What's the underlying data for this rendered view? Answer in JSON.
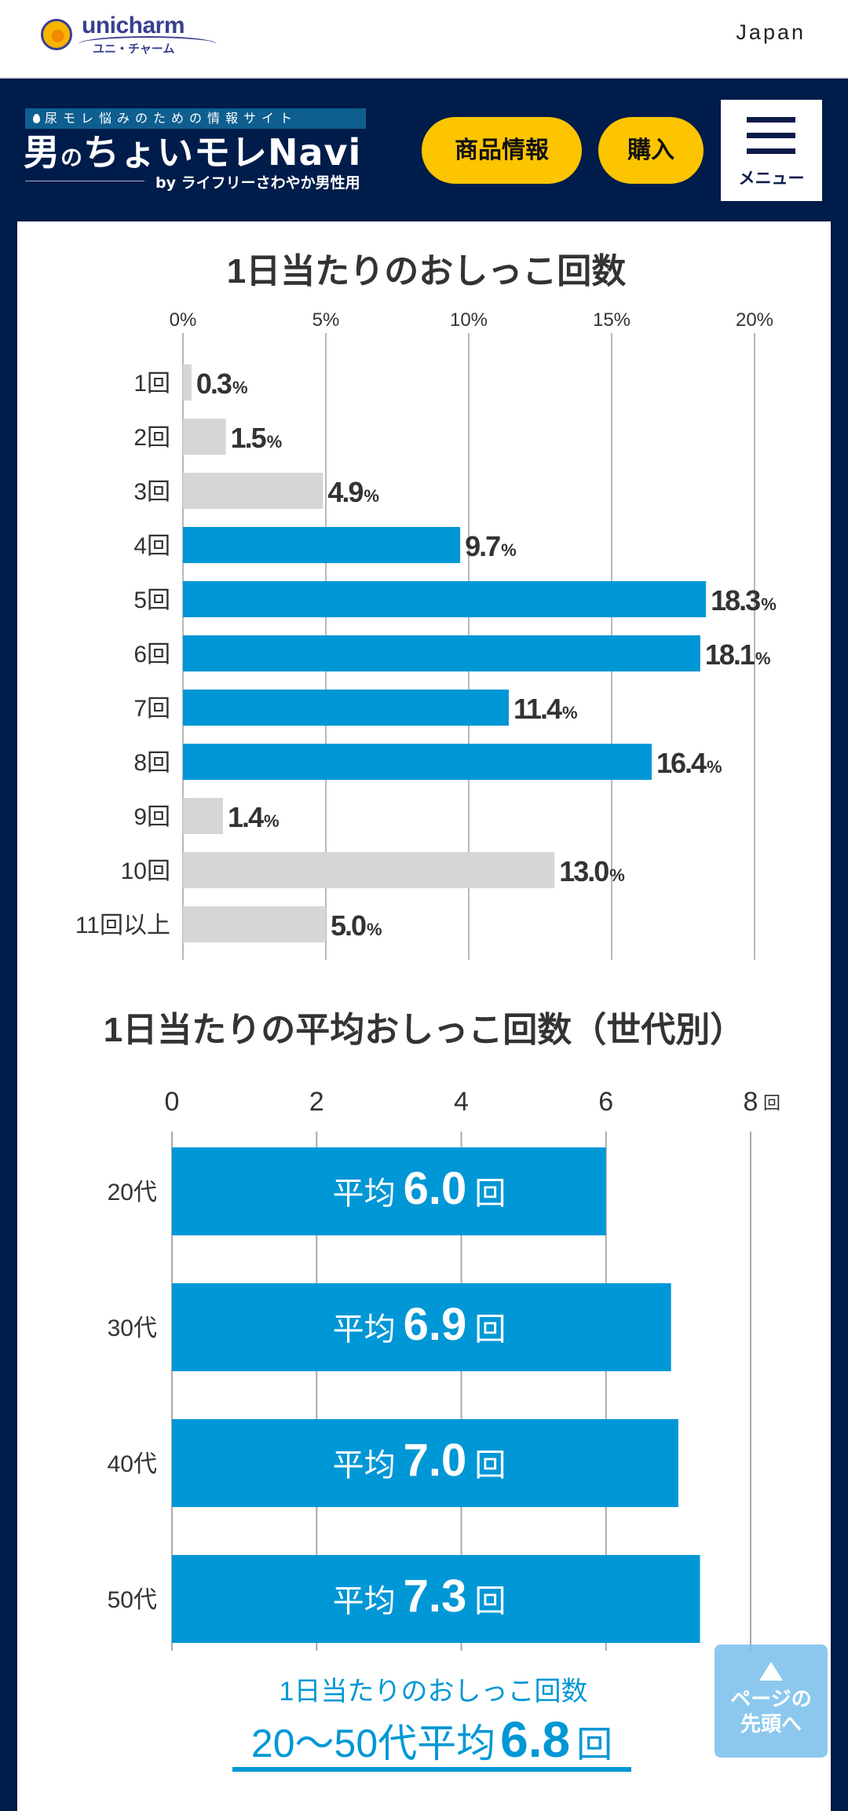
{
  "header": {
    "brand_name": "unicharm",
    "brand_kana": "ユニ・チャーム",
    "region": "Japan"
  },
  "nav": {
    "tagline": "尿モレ悩みのための情報サイト",
    "site_name_part1": "男",
    "site_name_part2": "の",
    "site_name_part3": "ちょいモレNavi",
    "byline": "by  ライフリーさわやか男性用",
    "products_button": "商品情報",
    "buy_button": "購入",
    "menu_label": "メニュー"
  },
  "colors": {
    "highlight": "#0097d6",
    "muted": "#d6d6d6",
    "navy": "#001c4a",
    "accent_yellow": "#fdc400"
  },
  "chart_data": [
    {
      "type": "bar",
      "orientation": "horizontal",
      "title": "1日当たりのおしっこ回数",
      "xlim": [
        0,
        20
      ],
      "x_ticks": [
        "0%",
        "5%",
        "10%",
        "15%",
        "20%"
      ],
      "x_tick_values": [
        0,
        5,
        10,
        15,
        20
      ],
      "grid": true,
      "categories": [
        "1回",
        "2回",
        "3回",
        "4回",
        "5回",
        "6回",
        "7回",
        "8回",
        "9回",
        "10回",
        "11回以上"
      ],
      "values": [
        0.3,
        1.5,
        4.9,
        9.7,
        18.3,
        18.1,
        11.4,
        16.4,
        1.4,
        13.0,
        5.0
      ],
      "value_labels": [
        "0.3",
        "1.5",
        "4.9",
        "9.7",
        "18.3",
        "18.1",
        "11.4",
        "16.4",
        "1.4",
        "13.0",
        "5.0"
      ],
      "value_unit": "%",
      "highlighted": [
        false,
        false,
        false,
        true,
        true,
        true,
        true,
        true,
        false,
        false,
        false
      ]
    },
    {
      "type": "bar",
      "orientation": "horizontal",
      "title": "1日当たりの平均おしっこ回数（世代別）",
      "xlim": [
        0,
        8
      ],
      "x_ticks": [
        "0",
        "2",
        "4",
        "6",
        "8"
      ],
      "x_tick_values": [
        0,
        2,
        4,
        6,
        8
      ],
      "x_unit": "回",
      "grid": true,
      "categories": [
        "20代",
        "30代",
        "40代",
        "50代"
      ],
      "values": [
        6.0,
        6.9,
        7.0,
        7.3
      ],
      "value_labels": [
        "6.0",
        "6.9",
        "7.0",
        "7.3"
      ],
      "bar_prefix": "平均",
      "bar_suffix": "回",
      "summary_line1": "1日当たりのおしっこ回数",
      "summary_line2_prefix": "20〜50代平均",
      "summary_value": "6.8",
      "summary_unit": "回"
    }
  ],
  "page_top": {
    "line1": "ページの",
    "line2": "先頭へ"
  }
}
